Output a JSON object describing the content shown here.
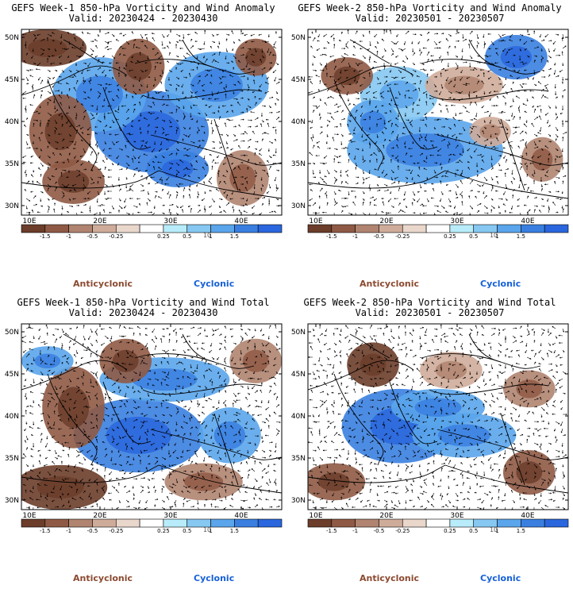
{
  "panels": [
    {
      "title_line1": "GEFS Week-1 850-hPa Vorticity and Wind Anomaly",
      "title_line2": "Valid: 20230424 - 20230430",
      "variant": "anomaly"
    },
    {
      "title_line1": "GEFS Week-2 850-hPa Vorticity and Wind Anomaly",
      "title_line2": "Valid: 20230501 - 20230507",
      "variant": "anomaly2"
    },
    {
      "title_line1": "GEFS Week-1 850-hPa Vorticity and Wind Total",
      "title_line2": "Valid: 20230424 - 20230430",
      "variant": "total"
    },
    {
      "title_line1": "GEFS Week-2 850-hPa Vorticity and Wind Total",
      "title_line2": "Valid: 20230501 - 20230507",
      "variant": "total2"
    }
  ],
  "axes": {
    "lat_labels": [
      "50N",
      "45N",
      "40N",
      "35N",
      "30N"
    ],
    "lon_labels": [
      "10E",
      "20E",
      "30E",
      "40E"
    ]
  },
  "colorbar": {
    "labels": [
      "-1.5",
      "-1",
      "-0.5",
      "-0.25",
      "0.25",
      "0.5",
      "1",
      "1.5"
    ],
    "overlay_text": "10",
    "colors": [
      "#6b3d2a",
      "#8f5a45",
      "#b08470",
      "#cfac9a",
      "#ead7cb",
      "#ffffff",
      "#b8ecfa",
      "#86c8f2",
      "#5aa5eb",
      "#3a7fe0",
      "#2a66dd"
    ]
  },
  "legend": {
    "anticyclonic": "Anticyclonic",
    "cyclonic": "Cyclonic",
    "anticyclonic_color": "#8b4a30",
    "cyclonic_color": "#1560d8"
  }
}
